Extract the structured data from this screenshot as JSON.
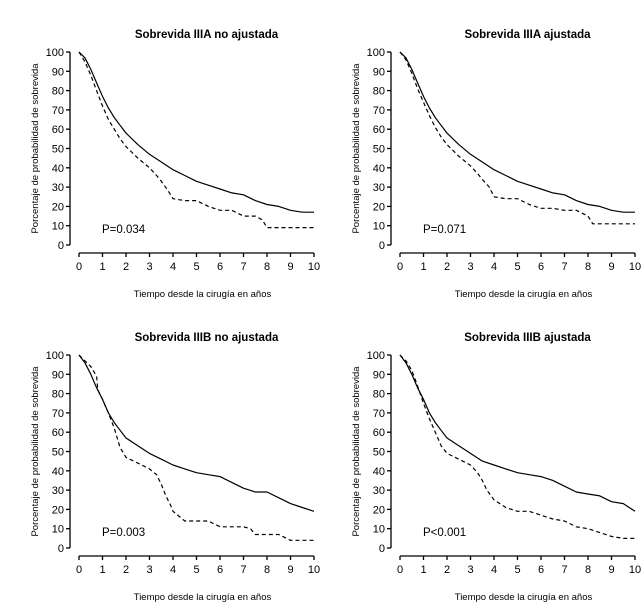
{
  "chart_data": [
    {
      "type": "line",
      "title": "Sobrevida IIIA no ajustada",
      "xlabel": "Tiempo desde la cirugía en años",
      "ylabel": "Porcentaje de probabilidad de sobrevida",
      "xlim": [
        0,
        10
      ],
      "ylim": [
        0,
        100
      ],
      "xticks": [
        0,
        1,
        2,
        3,
        4,
        5,
        6,
        7,
        8,
        9,
        10
      ],
      "yticks": [
        0,
        10,
        20,
        30,
        40,
        50,
        60,
        70,
        80,
        90,
        100
      ],
      "annotation": "P=0.034",
      "series": [
        {
          "name": "solid",
          "style": "solid",
          "x": [
            0,
            0.25,
            0.5,
            0.75,
            1,
            1.25,
            1.5,
            1.75,
            2,
            2.5,
            3,
            3.5,
            4,
            4.5,
            5,
            5.5,
            6,
            6.5,
            7,
            7.5,
            8,
            8.5,
            9,
            9.5,
            10
          ],
          "y": [
            100,
            97,
            91,
            84,
            77,
            71,
            66,
            62,
            58,
            52,
            47,
            43,
            39,
            36,
            33,
            31,
            29,
            27,
            26,
            23,
            21,
            20,
            18,
            17,
            17
          ]
        },
        {
          "name": "dashed",
          "style": "dashed",
          "x": [
            0,
            0.25,
            0.5,
            0.75,
            1,
            1.25,
            1.5,
            1.75,
            2,
            2.5,
            3,
            3.3,
            3.5,
            3.8,
            4,
            4.5,
            5,
            5.5,
            6,
            6.5,
            7,
            7.5,
            7.8,
            8,
            8.5,
            9,
            9.5,
            10
          ],
          "y": [
            100,
            95,
            88,
            80,
            72,
            65,
            60,
            55,
            51,
            45,
            40,
            36,
            33,
            28,
            24,
            23,
            23,
            20,
            18,
            18,
            15,
            15,
            13,
            9,
            9,
            9,
            9,
            9
          ]
        }
      ]
    },
    {
      "type": "line",
      "title": "Sobrevida IIIA ajustada",
      "xlabel": "Tiempo desde la cirugía en años",
      "ylabel": "Porcentaje de probabilidad de sobrevida",
      "xlim": [
        0,
        10
      ],
      "ylim": [
        0,
        100
      ],
      "xticks": [
        0,
        1,
        2,
        3,
        4,
        5,
        6,
        7,
        8,
        9,
        10
      ],
      "yticks": [
        0,
        10,
        20,
        30,
        40,
        50,
        60,
        70,
        80,
        90,
        100
      ],
      "annotation": "P=0.071",
      "series": [
        {
          "name": "solid",
          "style": "solid",
          "x": [
            0,
            0.25,
            0.5,
            0.75,
            1,
            1.25,
            1.5,
            1.75,
            2,
            2.5,
            3,
            3.5,
            4,
            4.5,
            5,
            5.5,
            6,
            6.5,
            7,
            7.5,
            8,
            8.5,
            9,
            9.5,
            10
          ],
          "y": [
            100,
            97,
            91,
            84,
            77,
            71,
            66,
            62,
            58,
            52,
            47,
            43,
            39,
            36,
            33,
            31,
            29,
            27,
            26,
            23,
            21,
            20,
            18,
            17,
            17
          ]
        },
        {
          "name": "dashed",
          "style": "dashed",
          "x": [
            0,
            0.25,
            0.5,
            0.75,
            1,
            1.25,
            1.5,
            1.75,
            2,
            2.5,
            3,
            3.3,
            3.5,
            3.8,
            4,
            4.5,
            5,
            5.5,
            6,
            6.5,
            7,
            7.5,
            8,
            8.2,
            8.5,
            9,
            9.5,
            10
          ],
          "y": [
            100,
            96,
            89,
            81,
            74,
            67,
            61,
            56,
            52,
            46,
            41,
            37,
            34,
            30,
            25,
            24,
            24,
            21,
            19,
            19,
            18,
            18,
            15,
            11,
            11,
            11,
            11,
            11
          ]
        }
      ]
    },
    {
      "type": "line",
      "title": "Sobrevida IIIB no ajustada",
      "xlabel": "Tiempo desde la cirugía en años",
      "ylabel": "Porcentaje de probabilidad de sobrevida",
      "xlim": [
        0,
        10
      ],
      "ylim": [
        0,
        100
      ],
      "xticks": [
        0,
        1,
        2,
        3,
        4,
        5,
        6,
        7,
        8,
        9,
        10
      ],
      "yticks": [
        0,
        10,
        20,
        30,
        40,
        50,
        60,
        70,
        80,
        90,
        100
      ],
      "annotation": "P=0.003",
      "series": [
        {
          "name": "solid",
          "style": "solid",
          "x": [
            0,
            0.25,
            0.5,
            0.75,
            1,
            1.25,
            1.5,
            1.75,
            2,
            2.5,
            3,
            3.5,
            4,
            4.5,
            5,
            5.5,
            6,
            6.5,
            7,
            7.5,
            8,
            8.5,
            9,
            9.5,
            10
          ],
          "y": [
            100,
            96,
            90,
            83,
            77,
            70,
            65,
            61,
            57,
            53,
            49,
            46,
            43,
            41,
            39,
            38,
            37,
            34,
            31,
            29,
            29,
            26,
            23,
            21,
            19
          ]
        },
        {
          "name": "dashed",
          "style": "dashed",
          "x": [
            0,
            0.25,
            0.5,
            0.75,
            0.8,
            1,
            1.25,
            1.5,
            1.75,
            2,
            2.5,
            3,
            3.3,
            3.5,
            3.7,
            3.9,
            4,
            4.3,
            4.5,
            5,
            5.5,
            6,
            6.5,
            7,
            7.3,
            7.5,
            8,
            8.5,
            9,
            9.5,
            10
          ],
          "y": [
            100,
            97,
            94,
            89,
            82,
            77,
            70,
            62,
            52,
            47,
            44,
            41,
            38,
            33,
            27,
            22,
            19,
            16,
            14,
            14,
            14,
            11,
            11,
            11,
            10,
            7,
            7,
            7,
            4,
            4,
            4
          ]
        }
      ]
    },
    {
      "type": "line",
      "title": "Sobrevida IIIB ajustada",
      "xlabel": "Tiempo desde la cirugía en años",
      "ylabel": "Porcentaje de probabilidad de sobrevida",
      "xlim": [
        0,
        10
      ],
      "ylim": [
        0,
        100
      ],
      "xticks": [
        0,
        1,
        2,
        3,
        4,
        5,
        6,
        7,
        8,
        9,
        10
      ],
      "yticks": [
        0,
        10,
        20,
        30,
        40,
        50,
        60,
        70,
        80,
        90,
        100
      ],
      "annotation": "P<0.001",
      "series": [
        {
          "name": "solid",
          "style": "solid",
          "x": [
            0,
            0.25,
            0.5,
            0.75,
            1,
            1.25,
            1.5,
            1.75,
            2,
            2.5,
            3,
            3.5,
            4,
            4.5,
            5,
            5.5,
            6,
            6.5,
            7,
            7.5,
            8,
            8.5,
            9,
            9.5,
            10
          ],
          "y": [
            100,
            96,
            90,
            83,
            77,
            70,
            65,
            61,
            57,
            53,
            49,
            45,
            43,
            41,
            39,
            38,
            37,
            35,
            32,
            29,
            28,
            27,
            24,
            23,
            19
          ]
        },
        {
          "name": "dashed",
          "style": "dashed",
          "x": [
            0,
            0.25,
            0.5,
            0.75,
            1,
            1.25,
            1.5,
            1.75,
            2,
            2.5,
            3,
            3.3,
            3.5,
            3.7,
            4,
            4.5,
            5,
            5.5,
            6,
            6.5,
            7,
            7.5,
            8,
            8.5,
            9,
            9.5,
            10
          ],
          "y": [
            100,
            97,
            92,
            84,
            75,
            67,
            60,
            53,
            49,
            46,
            43,
            39,
            35,
            30,
            25,
            21,
            19,
            19,
            17,
            15,
            14,
            11,
            10,
            8,
            6,
            5,
            5
          ]
        }
      ]
    }
  ]
}
